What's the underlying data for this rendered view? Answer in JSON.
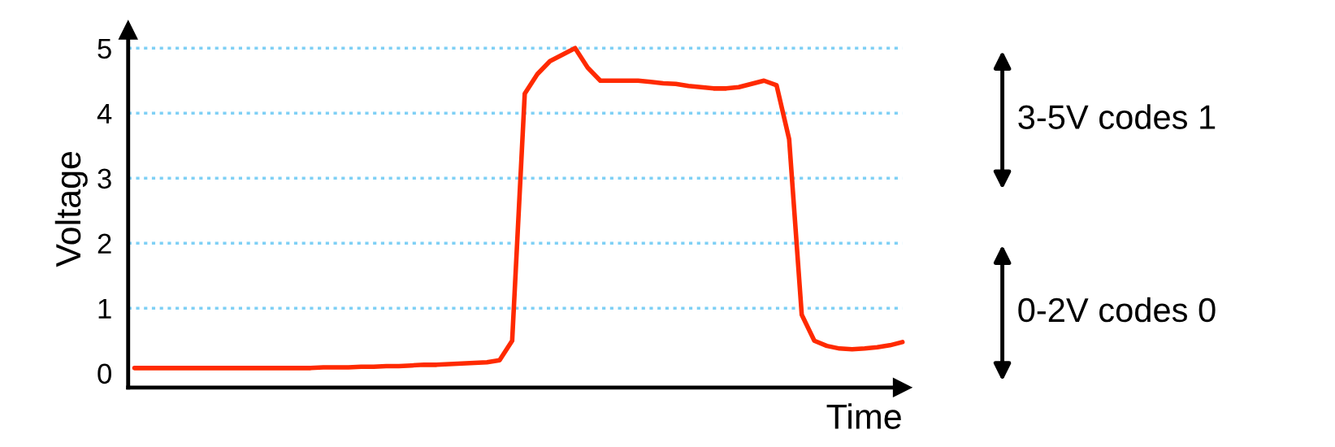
{
  "chart_data": {
    "type": "line",
    "xlabel": "Time",
    "ylabel": "Voltage",
    "categories": [
      null,
      null,
      null,
      null,
      null,
      null,
      null,
      null,
      null,
      null,
      null,
      null,
      null,
      null,
      null,
      null,
      null,
      null,
      null,
      null,
      null,
      null,
      null,
      null,
      null,
      null,
      null,
      null,
      null,
      null,
      null,
      null,
      null,
      null,
      null,
      null,
      null,
      null,
      null,
      null,
      null,
      null,
      null,
      null,
      null,
      null,
      null,
      null,
      null,
      null,
      null,
      null,
      null,
      null,
      null,
      null,
      null,
      null,
      null,
      null,
      null,
      null
    ],
    "series": [
      {
        "color": "#ff2a00",
        "values": [
          0.08,
          0.08,
          0.08,
          0.08,
          0.08,
          0.08,
          0.08,
          0.08,
          0.08,
          0.08,
          0.08,
          0.08,
          0.08,
          0.08,
          0.08,
          0.09,
          0.09,
          0.09,
          0.1,
          0.1,
          0.11,
          0.11,
          0.12,
          0.13,
          0.13,
          0.14,
          0.15,
          0.16,
          0.17,
          0.2,
          0.5,
          4.3,
          4.6,
          4.8,
          4.9,
          5.0,
          4.7,
          4.5,
          4.5,
          4.5,
          4.5,
          4.48,
          4.46,
          4.45,
          4.42,
          4.4,
          4.38,
          4.38,
          4.4,
          4.45,
          4.5,
          4.43,
          3.6,
          0.9,
          0.5,
          0.42,
          0.38,
          0.37,
          0.38,
          0.4,
          0.43,
          0.48
        ]
      }
    ],
    "ylim": [
      -0.22,
      5.28
    ],
    "yticks": [
      0,
      1,
      2,
      3,
      4,
      5
    ],
    "tick_labels": "y",
    "grid": "y",
    "marker": "none",
    "line_style": "solid",
    "annotations": [
      "3-5V codes 1",
      "0-2V codes 0"
    ]
  }
}
